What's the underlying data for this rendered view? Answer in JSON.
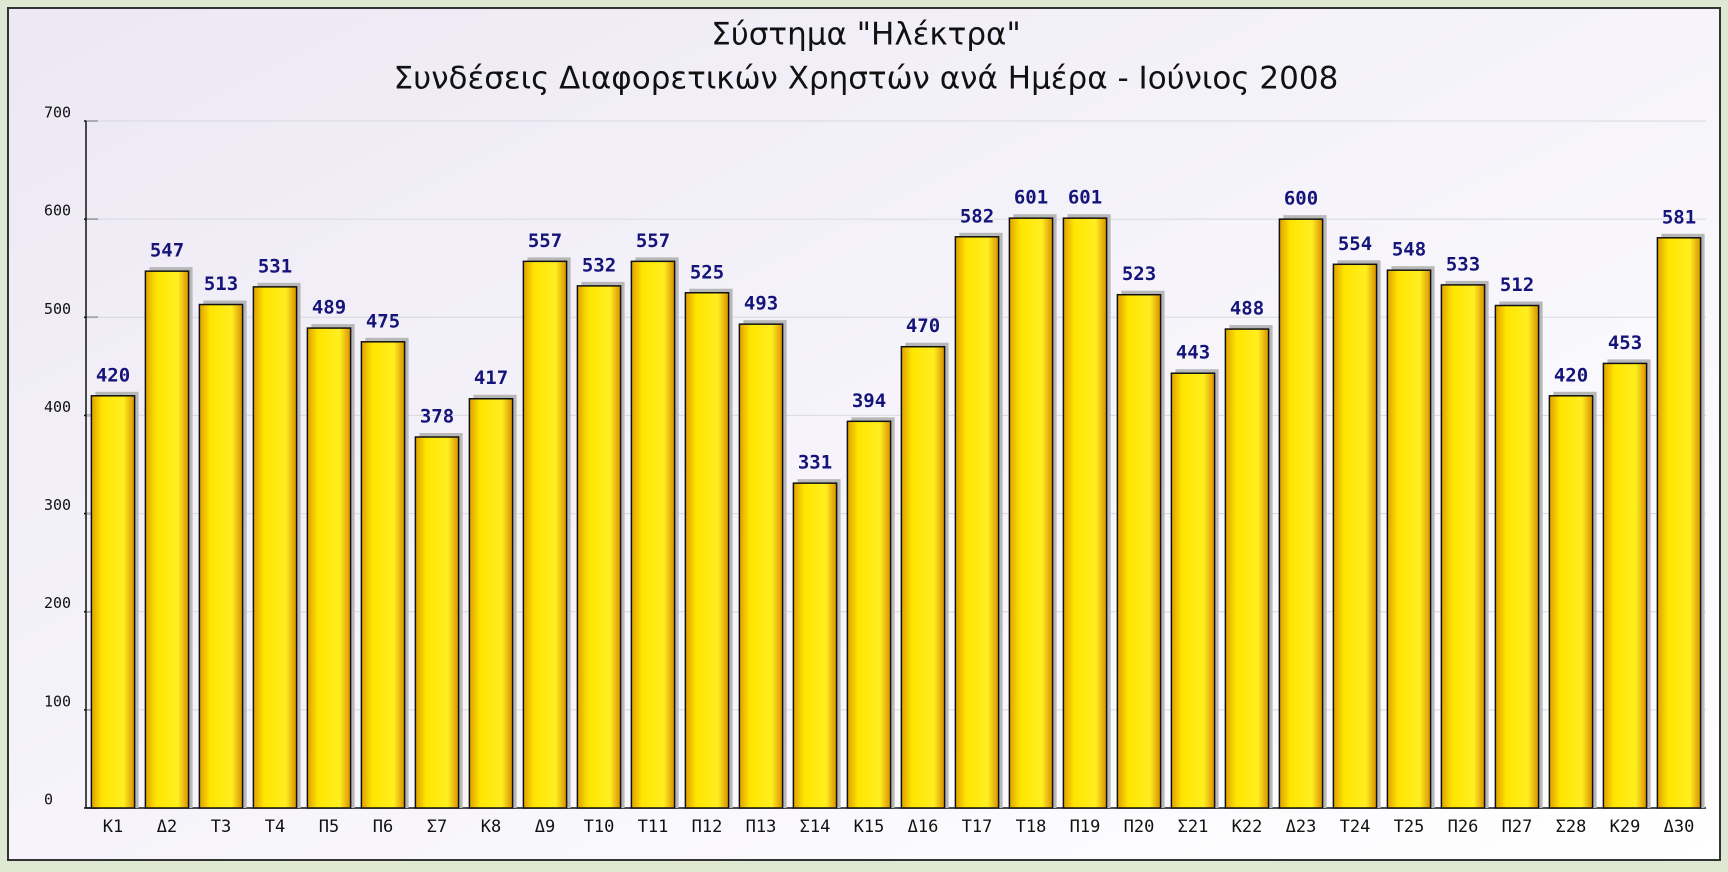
{
  "chart_data": {
    "type": "bar",
    "title": "Σύστημα \"Ηλέκτρα\"",
    "subtitle": "Συνδέσεις Διαφορετικών Χρηστών ανά Ημέρα - Ιούνιος 2008",
    "categories": [
      "Κ1",
      "Δ2",
      "Τ3",
      "Τ4",
      "Π5",
      "Π6",
      "Σ7",
      "Κ8",
      "Δ9",
      "Τ10",
      "Τ11",
      "Π12",
      "Π13",
      "Σ14",
      "Κ15",
      "Δ16",
      "Τ17",
      "Τ18",
      "Π19",
      "Π20",
      "Σ21",
      "Κ22",
      "Δ23",
      "Τ24",
      "Τ25",
      "Π26",
      "Π27",
      "Σ28",
      "Κ29",
      "Δ30"
    ],
    "values": [
      420,
      547,
      513,
      531,
      489,
      475,
      378,
      417,
      557,
      532,
      557,
      525,
      493,
      331,
      394,
      470,
      582,
      601,
      601,
      523,
      443,
      488,
      600,
      554,
      548,
      533,
      512,
      420,
      453,
      581
    ],
    "color": "#ffe600",
    "ylim": [
      0,
      700
    ],
    "yticks": [
      0,
      100,
      200,
      300,
      400,
      500,
      600,
      700
    ],
    "grid": true
  }
}
